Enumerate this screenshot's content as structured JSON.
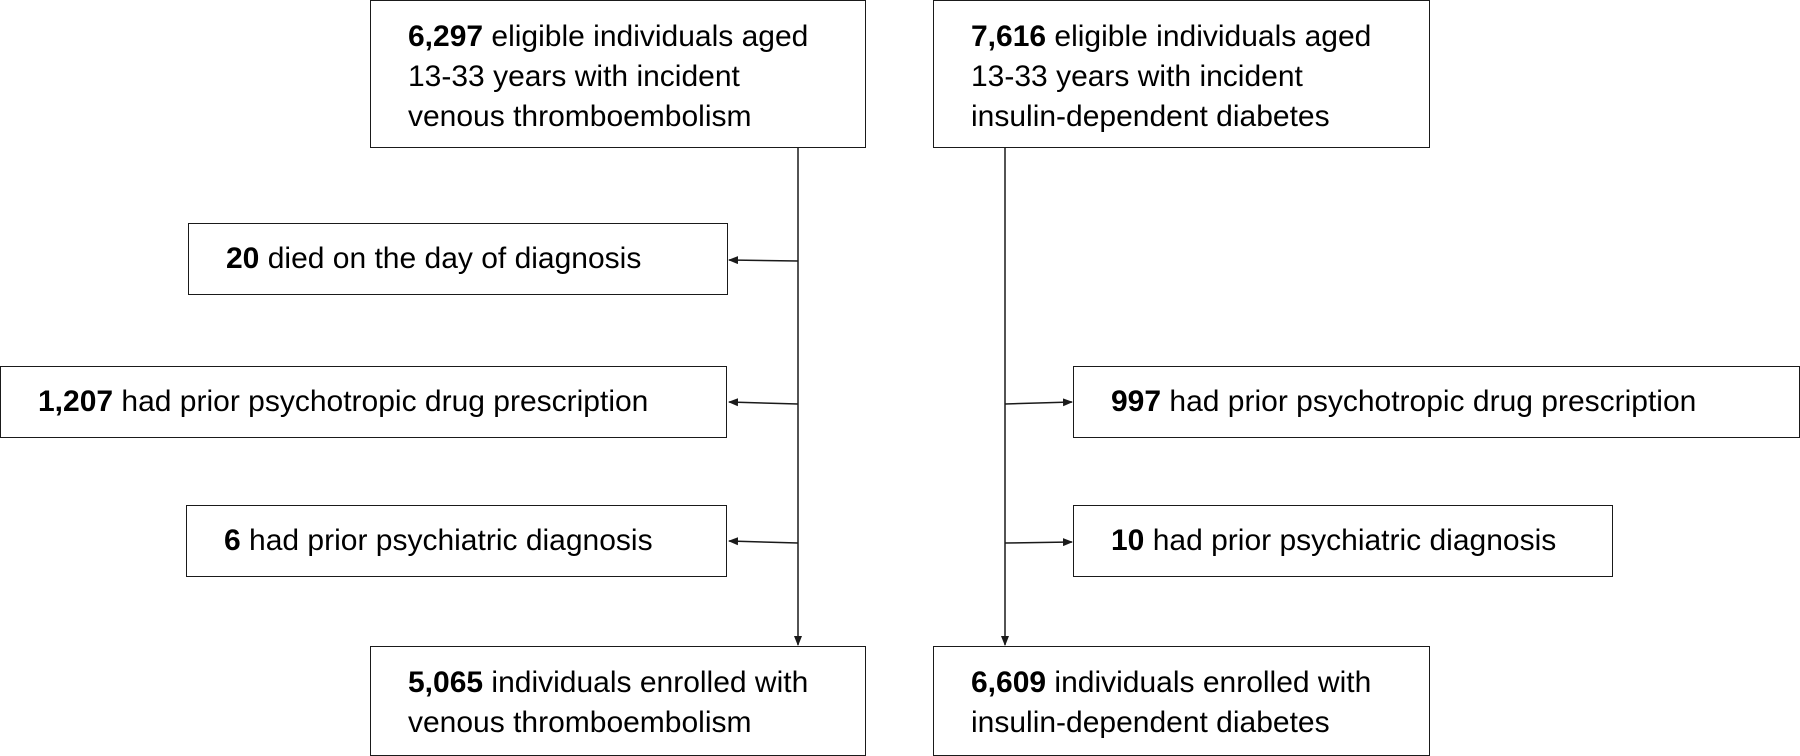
{
  "left_flow": {
    "start": {
      "count": "6,297",
      "lines": [
        "eligible individuals aged",
        "13-33 years with incident",
        "venous thromboembolism"
      ]
    },
    "exclusions": [
      {
        "count": "20",
        "text": "died on the day of diagnosis"
      },
      {
        "count": "1,207",
        "text": "had prior psychotropic drug prescription"
      },
      {
        "count": "6",
        "text": "had prior psychiatric diagnosis"
      }
    ],
    "end": {
      "count": "5,065",
      "lines": [
        "individuals enrolled with",
        "venous thromboembolism"
      ]
    }
  },
  "right_flow": {
    "start": {
      "count": "7,616",
      "lines": [
        "eligible individuals aged",
        "13-33 years with incident",
        "insulin-dependent diabetes"
      ]
    },
    "exclusions": [
      {
        "count": "997",
        "text": "had prior psychotropic drug prescription"
      },
      {
        "count": "10",
        "text": "had prior psychiatric diagnosis"
      }
    ],
    "end": {
      "count": "6,609",
      "lines": [
        "individuals enrolled with",
        "insulin-dependent diabetes"
      ]
    }
  }
}
